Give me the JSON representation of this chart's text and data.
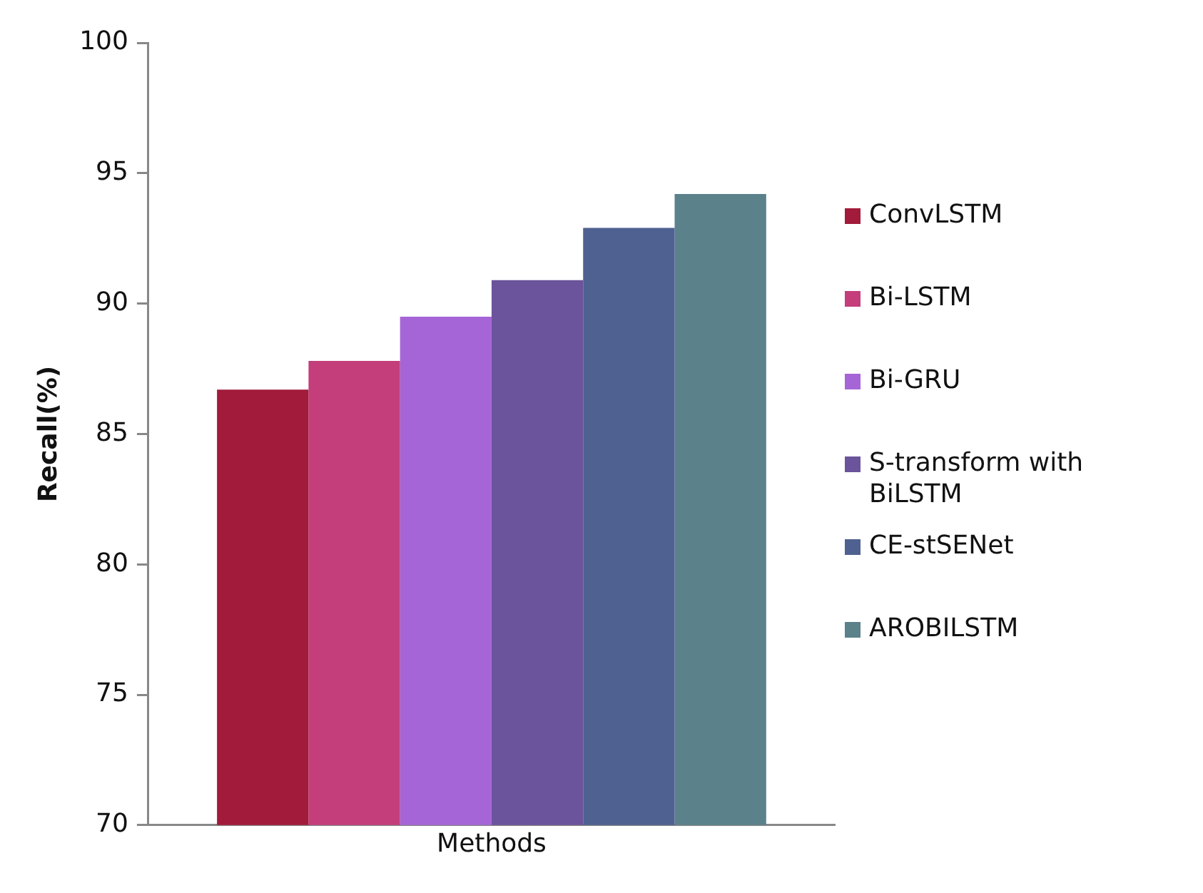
{
  "chart_data": {
    "type": "bar",
    "categories": [
      "Methods"
    ],
    "ylabel": "Recall(%)",
    "ylim": [
      70,
      100
    ],
    "yticks": [
      70,
      75,
      80,
      85,
      90,
      95,
      100
    ],
    "grid": false,
    "legend": "right",
    "series": [
      {
        "name": "ConvLSTM",
        "color": "#a21b3a",
        "values": [
          86.7
        ]
      },
      {
        "name": "Bi-LSTM",
        "color": "#c33e7b",
        "values": [
          87.8
        ]
      },
      {
        "name": "Bi-GRU",
        "color": "#a665d6",
        "values": [
          89.5
        ]
      },
      {
        "name": "S-transform with BiLSTM",
        "color": "#6b549b",
        "values": [
          90.9
        ]
      },
      {
        "name": "CE-stSENet",
        "color": "#4f6191",
        "values": [
          92.9
        ]
      },
      {
        "name": "AROBILSTM",
        "color": "#5b818b",
        "values": [
          94.2
        ]
      }
    ]
  }
}
